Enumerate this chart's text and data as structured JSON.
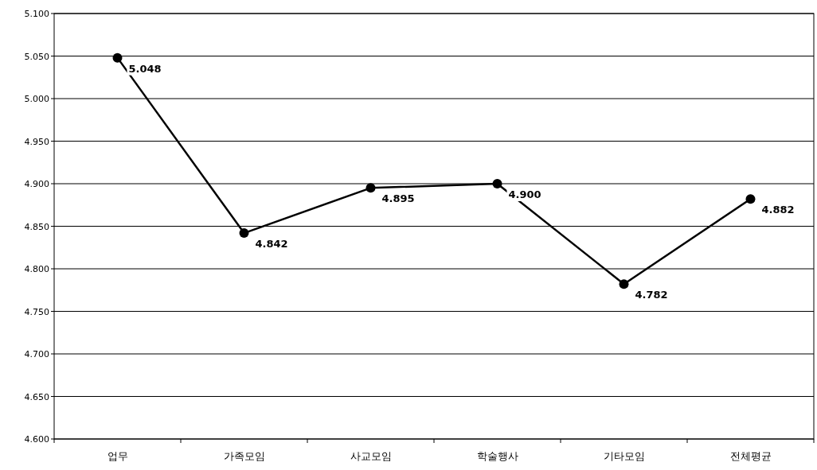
{
  "chart_data": {
    "type": "line",
    "categories": [
      "업무",
      "가족모임",
      "사교모임",
      "학술행사",
      "기타모임",
      "전체평균"
    ],
    "series": [
      {
        "color": "#000000",
        "values": [
          5.048,
          4.842,
          4.895,
          4.9,
          4.782,
          4.882
        ]
      }
    ],
    "ylim": [
      4.6,
      5.1
    ],
    "yticks": [
      {
        "value": 4.6,
        "label": "4.600"
      },
      {
        "value": 4.65,
        "label": "4.650"
      },
      {
        "value": 4.7,
        "label": "4.700"
      },
      {
        "value": 4.75,
        "label": "4.750"
      },
      {
        "value": 4.8,
        "label": "4.800"
      },
      {
        "value": 4.85,
        "label": "4.850"
      },
      {
        "value": 4.9,
        "label": "4.900"
      },
      {
        "value": 4.95,
        "label": "4.950"
      },
      {
        "value": 5.0,
        "label": "5.000"
      },
      {
        "value": 5.05,
        "label": "5.050"
      },
      {
        "value": 5.1,
        "label": "5.100"
      }
    ],
    "value_labels": [
      [
        "5.048",
        "4.842",
        "4.895",
        "4.900",
        "4.782",
        "4.882"
      ]
    ],
    "grid": "y",
    "marker": "circle",
    "line_style": "solid"
  }
}
